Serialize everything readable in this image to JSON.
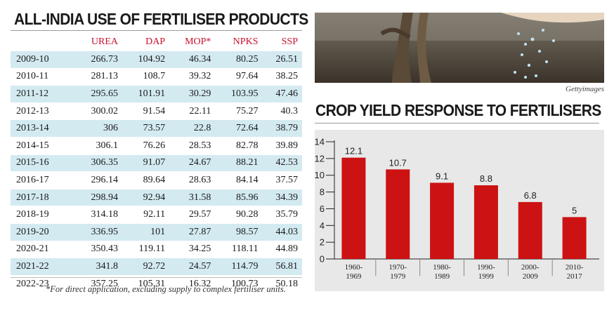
{
  "left_panel": {
    "title": "ALL-INDIA USE OF FERTILISER PRODUCTS",
    "footnote": "*For direct application, excluding supply to complex fertiliser units."
  },
  "right_panel": {
    "title": "CROP YIELD RESPONSE TO FERTILISERS",
    "photo_credit": "Gettyimages"
  },
  "colors": {
    "bar": "#cc1212",
    "header_text": "#c8102e",
    "stripe": "#d3eaf1",
    "chart_bg": "#e8e8e8"
  },
  "chart_data": [
    {
      "type": "table",
      "title": "ALL-INDIA USE OF FERTILISER PRODUCTS",
      "columns": [
        "",
        "UREA",
        "DAP",
        "MOP*",
        "NPKS",
        "SSP"
      ],
      "rows": [
        [
          "2009-10",
          "266.73",
          "104.92",
          "46.34",
          "80.25",
          "26.51"
        ],
        [
          "2010-11",
          "281.13",
          "108.7",
          "39.32",
          "97.64",
          "38.25"
        ],
        [
          "2011-12",
          "295.65",
          "101.91",
          "30.29",
          "103.95",
          "47.46"
        ],
        [
          "2012-13",
          "300.02",
          "91.54",
          "22.11",
          "75.27",
          "40.3"
        ],
        [
          "2013-14",
          "306",
          "73.57",
          "22.8",
          "72.64",
          "38.79"
        ],
        [
          "2014-15",
          "306.1",
          "76.26",
          "28.53",
          "82.78",
          "39.89"
        ],
        [
          "2015-16",
          "306.35",
          "91.07",
          "24.67",
          "88.21",
          "42.53"
        ],
        [
          "2016-17",
          "296.14",
          "89.64",
          "28.63",
          "84.14",
          "37.57"
        ],
        [
          "2017-18",
          "298.94",
          "92.94",
          "31.58",
          "85.96",
          "34.39"
        ],
        [
          "2018-19",
          "314.18",
          "92.11",
          "29.57",
          "90.28",
          "35.79"
        ],
        [
          "2019-20",
          "336.95",
          "101",
          "27.87",
          "98.57",
          "44.03"
        ],
        [
          "2020-21",
          "350.43",
          "119.11",
          "34.25",
          "118.11",
          "44.89"
        ],
        [
          "2021-22",
          "341.8",
          "92.72",
          "24.57",
          "114.79",
          "56.81"
        ],
        [
          "2022-23",
          "357.25",
          "105.31",
          "16.32",
          "100.73",
          "50.18"
        ]
      ]
    },
    {
      "type": "bar",
      "title": "CROP YIELD RESPONSE TO FERTILISERS",
      "categories": [
        [
          "1960-",
          "1969"
        ],
        [
          "1970-",
          "1979"
        ],
        [
          "1980-",
          "1989"
        ],
        [
          "1990-",
          "1999"
        ],
        [
          "2000-",
          "2009"
        ],
        [
          "2010-",
          "2017"
        ]
      ],
      "values": [
        12.1,
        10.7,
        9.1,
        8.8,
        6.8,
        5
      ],
      "value_labels": [
        "12.1",
        "10.7",
        "9.1",
        "8.8",
        "6.8",
        "5"
      ],
      "yticks": [
        "0",
        "2",
        "4",
        "6",
        "8",
        "10",
        "12",
        "14"
      ],
      "ylim": [
        0,
        14
      ],
      "xlabel": "",
      "ylabel": ""
    }
  ]
}
